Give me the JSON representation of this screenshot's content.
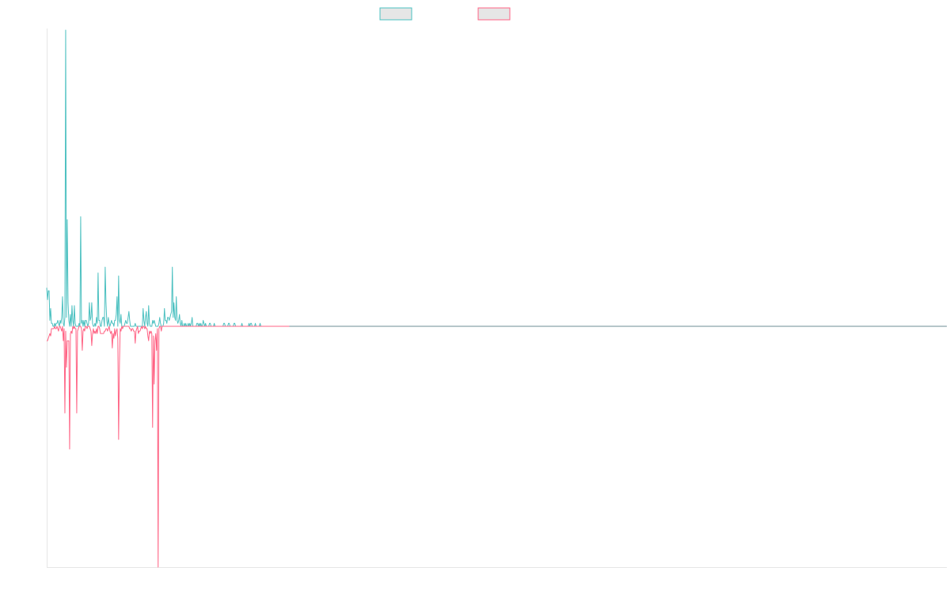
{
  "chart_data": {
    "type": "line",
    "title": "",
    "xlabel": "",
    "ylabel": "",
    "grid": false,
    "legend_position": "top-center",
    "x_count": 1140,
    "ylim": [
      -1,
      1
    ],
    "baseline_after_index": 307,
    "legend": {
      "fill": "#e6e6e6"
    },
    "series": [
      {
        "color": "#4bc0c0",
        "values": [
          0.13,
          0.09,
          0.12,
          0.12,
          0.02,
          0.06,
          0.01,
          0.01,
          0,
          0,
          0.01,
          0,
          0.01,
          0.01,
          0.02,
          0.01,
          0,
          0.02,
          0.01,
          0.03,
          0.1,
          0.01,
          0,
          0.03,
          1,
          0.03,
          0.36,
          0.08,
          0.02,
          0,
          0.04,
          0,
          0.07,
          0.02,
          0,
          0.07,
          0.01,
          0,
          0,
          0,
          0,
          0.01,
          0,
          0.37,
          0.01,
          0.02,
          0,
          0.02,
          0,
          0.02,
          0.02,
          0.01,
          0,
          0.01,
          0.08,
          0.02,
          0.03,
          0.08,
          0.01,
          0,
          0,
          0.01,
          0,
          0.03,
          0.01,
          0.18,
          0.02,
          0.02,
          0,
          0,
          0.02,
          0.03,
          0.03,
          0,
          0.2,
          0.08,
          0.02,
          0,
          0.03,
          0.01,
          0,
          0.01,
          0.02,
          0.01,
          0.01,
          0,
          0.02,
          0.02,
          0.04,
          0.1,
          0,
          0.17,
          0.02,
          0.01,
          0.04,
          0,
          0,
          0,
          0,
          0.01,
          0.02,
          0.01,
          0.01,
          0.03,
          0.05,
          0.02,
          0,
          0,
          0,
          0,
          0,
          0,
          0.01,
          0,
          0,
          0,
          0,
          0,
          0,
          0,
          0,
          0,
          0.06,
          0.02,
          0,
          0.03,
          0.05,
          0.01,
          0,
          0.07,
          0.01,
          0,
          0,
          0,
          0.02,
          0.01,
          0.02,
          0.01,
          0,
          0,
          0,
          0,
          0.01,
          0.03,
          0.01,
          0,
          0,
          0,
          0.01,
          0.06,
          0.02,
          0.02,
          0.01,
          0.03,
          0.03,
          0.02,
          0.03,
          0.04,
          0.05,
          0.2,
          0.03,
          0.08,
          0.03,
          0.02,
          0.1,
          0.02,
          0.01,
          0.02,
          0.04,
          0.01,
          0,
          0.02,
          0,
          0,
          0.01,
          0,
          0.01,
          0,
          0,
          0.01,
          0,
          0.01,
          0,
          0.01,
          0.03,
          0,
          0,
          0,
          0,
          0,
          0.01,
          0.01,
          0,
          0.01,
          0,
          0.01,
          0,
          0,
          0.02,
          0.01,
          0,
          0.01,
          0,
          0,
          0,
          0,
          0.01,
          0.01,
          0,
          0,
          0,
          0,
          0.01,
          0,
          0,
          0,
          0,
          0,
          0,
          0,
          0,
          0,
          0,
          0,
          0.01,
          0.01,
          0,
          0,
          0,
          0,
          0.01,
          0.01,
          0,
          0,
          0,
          0,
          0,
          0.01,
          0.01,
          0,
          0,
          0,
          0,
          0,
          0,
          0,
          0,
          0.01,
          0,
          0,
          0,
          0,
          0,
          0,
          0,
          0,
          0.01,
          0,
          0.01,
          0.01,
          0,
          0,
          0,
          0,
          0.01,
          0,
          0,
          0,
          0,
          0,
          0.01,
          0,
          0,
          0,
          0,
          0,
          0,
          0,
          0,
          0,
          0,
          0,
          0,
          0,
          0,
          0,
          0,
          0,
          0,
          0,
          0,
          0,
          0,
          0,
          0,
          0,
          0,
          0,
          0,
          0,
          0,
          0,
          0,
          0,
          0,
          0,
          0,
          0,
          0,
          0,
          0,
          0,
          0,
          0,
          0,
          0,
          0,
          0,
          0,
          0,
          0,
          0
        ]
      },
      {
        "color": "#ff6384",
        "values": [
          -0.06,
          -0.06,
          -0.05,
          -0.04,
          -0.03,
          -0.04,
          -0.01,
          -0.01,
          -0.01,
          -0.01,
          0,
          -0.01,
          -0.01,
          0,
          -0.01,
          -0.02,
          0,
          0,
          -0.01,
          -0.02,
          0,
          -0.06,
          -0.01,
          -0.36,
          -0.02,
          -0.17,
          -0.06,
          -0.06,
          -0.06,
          -0.51,
          -0.03,
          -0.02,
          -0.03,
          0,
          -0.01,
          0,
          -0.01,
          -0.01,
          -0.36,
          -0.02,
          -0.01,
          0,
          0,
          0,
          -0.01,
          -0.1,
          -0.02,
          -0.01,
          -0.02,
          0,
          0,
          -0.01,
          0,
          0,
          0,
          -0.01,
          -0.02,
          -0.08,
          -0.03,
          -0.01,
          -0.03,
          -0.02,
          -0.03,
          -0.01,
          -0.03,
          0,
          0,
          -0.01,
          -0.03,
          -0.03,
          -0.03,
          -0.03,
          -0.03,
          -0.02,
          -0.02,
          -0.01,
          -0.01,
          -0.02,
          -0.01,
          0,
          -0.02,
          -0.03,
          -0.02,
          -0.09,
          -0.03,
          -0.05,
          -0.01,
          -0.04,
          -0.02,
          -0.01,
          -0.05,
          -0.47,
          -0.16,
          -0.01,
          -0.02,
          0,
          -0.01,
          0,
          0,
          0,
          0,
          0,
          0,
          0,
          0,
          -0.01,
          -0.01,
          -0.02,
          -0.01,
          -0.01,
          -0.02,
          -0.02,
          -0.07,
          -0.02,
          -0.01,
          0,
          -0.03,
          -0.02,
          -0.02,
          -0.01,
          0,
          -0.01,
          0,
          0,
          -0.01,
          0,
          -0.01,
          -0.01,
          -0.04,
          -0.06,
          -0.02,
          -0.03,
          -0.02,
          -0.03,
          -0.42,
          -0.04,
          -0.24,
          -0.06,
          -0.03,
          -0.1,
          -0.01,
          -1,
          -0.01,
          0,
          0,
          -0.02,
          0,
          0,
          0,
          0,
          0,
          0,
          0,
          0,
          0,
          0,
          0,
          0,
          0,
          0,
          0,
          0,
          0,
          0,
          0,
          0,
          0,
          0,
          0,
          0,
          0,
          0,
          0,
          0,
          0,
          0,
          0,
          0,
          0,
          0,
          0,
          0,
          0,
          0,
          0,
          0,
          0,
          0,
          0,
          0,
          0,
          0,
          0,
          0,
          0,
          0,
          0,
          0,
          0,
          0,
          0,
          0,
          0,
          0,
          0,
          0,
          0,
          0,
          0,
          0,
          0,
          0,
          0,
          0,
          0,
          0,
          0,
          0,
          0,
          0,
          0,
          0,
          0,
          0,
          0,
          0,
          0,
          0,
          0,
          0,
          0,
          0,
          0,
          0,
          0,
          0,
          0,
          0,
          0,
          0,
          0,
          0,
          0,
          0,
          0,
          0,
          0,
          0,
          0,
          0,
          0,
          0,
          0,
          0,
          0,
          0,
          0,
          0,
          0,
          0,
          0,
          0,
          0,
          0,
          0,
          0,
          0,
          0,
          0,
          0,
          0,
          0,
          0,
          0,
          0,
          0,
          0,
          0,
          0,
          0,
          0,
          0,
          0,
          0,
          0,
          0,
          0,
          0,
          0,
          0,
          0,
          0,
          0,
          0,
          0,
          0,
          0,
          0,
          0,
          0,
          0,
          0,
          0,
          0,
          0,
          0,
          0,
          0,
          0,
          0,
          0,
          0,
          0,
          0,
          0
        ]
      }
    ]
  }
}
